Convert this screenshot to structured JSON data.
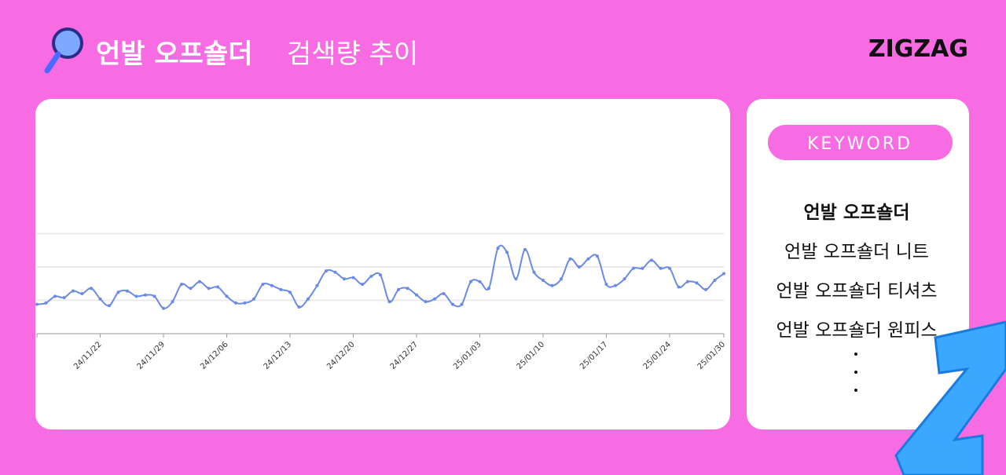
{
  "header": {
    "keyword": "언발 오프숄더",
    "title": "검색량 추이",
    "logo": "ZIGZAG"
  },
  "chart_data": {
    "type": "line",
    "x": [
      null,
      null,
      null,
      null,
      null,
      null,
      null,
      "24/11/22",
      null,
      null,
      null,
      null,
      null,
      null,
      "24/11/29",
      null,
      null,
      null,
      null,
      null,
      null,
      "24/12/06",
      null,
      null,
      null,
      null,
      null,
      null,
      "24/12/13",
      null,
      null,
      null,
      null,
      null,
      null,
      "24/12/20",
      null,
      null,
      null,
      null,
      null,
      null,
      "24/12/27",
      null,
      null,
      null,
      null,
      null,
      null,
      "25/01/03",
      null,
      null,
      null,
      null,
      null,
      null,
      "25/01/10",
      null,
      null,
      null,
      null,
      null,
      null,
      "25/01/17",
      null,
      null,
      null,
      null,
      null,
      null,
      "25/01/24",
      null,
      null,
      null,
      null,
      null,
      "25/01/30"
    ],
    "series": [
      {
        "name": "언발 오프숄더",
        "color": "#6a8ae6",
        "values": [
          22,
          23,
          28,
          27,
          32,
          30,
          34,
          26,
          21,
          31,
          32,
          28,
          29,
          28,
          19,
          24,
          37,
          34,
          39,
          34,
          35,
          28,
          23,
          23,
          26,
          37,
          36,
          33,
          31,
          20,
          26,
          36,
          47,
          46,
          41,
          42,
          37,
          43,
          44,
          24,
          33,
          34,
          29,
          24,
          26,
          30,
          22,
          22,
          39,
          39,
          34,
          64,
          61,
          41,
          63,
          46,
          40,
          36,
          41,
          56,
          50,
          56,
          58,
          37,
          36,
          41,
          49,
          49,
          55,
          49,
          49,
          35,
          39,
          38,
          33,
          40,
          45
        ]
      }
    ],
    "ylim": [
      0,
      100
    ],
    "grid_lines": [
      25,
      50,
      75
    ]
  },
  "keyword_panel": {
    "heading": "KEYWORD",
    "items": [
      "언발 오프숄더",
      "언발 오프숄더 니트",
      "언발 오프숄더 티셔츠",
      "언발 오프숄더 원피스"
    ]
  }
}
